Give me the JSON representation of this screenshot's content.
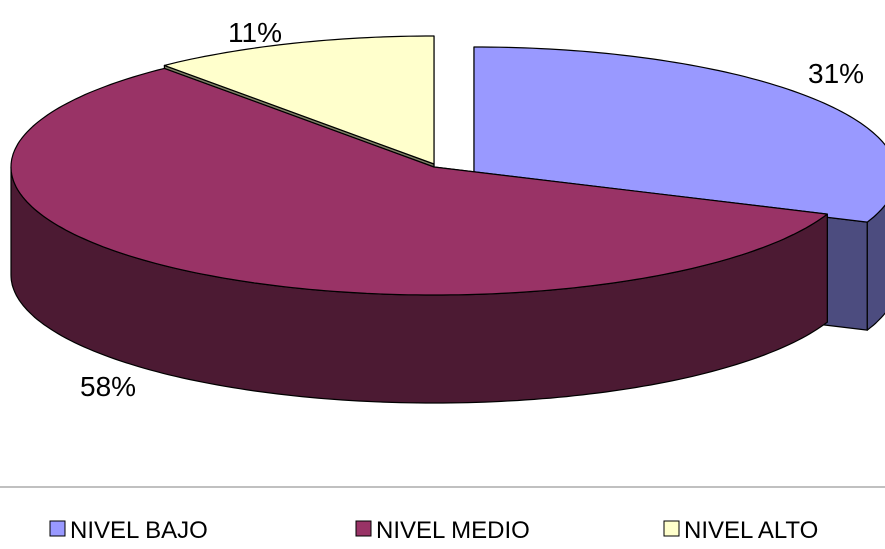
{
  "chart_data": {
    "type": "pie",
    "title": "",
    "categories": [
      "NIVEL BAJO",
      "NIVEL MEDIO",
      "NIVEL ALTO"
    ],
    "values": [
      31,
      58,
      11
    ],
    "labels": [
      "31%",
      "58%",
      "11%"
    ],
    "colors": {
      "NIVEL BAJO": {
        "top": "#9999ff",
        "side": "#4c4c7f"
      },
      "NIVEL MEDIO": {
        "top": "#993366",
        "side": "#4c1a33"
      },
      "NIVEL ALTO": {
        "top": "#ffffcc",
        "side": "#7f7f66"
      }
    },
    "style": "3d-exploded",
    "legend": {
      "placement": "bottom",
      "items": [
        "NIVEL BAJO",
        "NIVEL MEDIO",
        "NIVEL ALTO"
      ]
    }
  }
}
